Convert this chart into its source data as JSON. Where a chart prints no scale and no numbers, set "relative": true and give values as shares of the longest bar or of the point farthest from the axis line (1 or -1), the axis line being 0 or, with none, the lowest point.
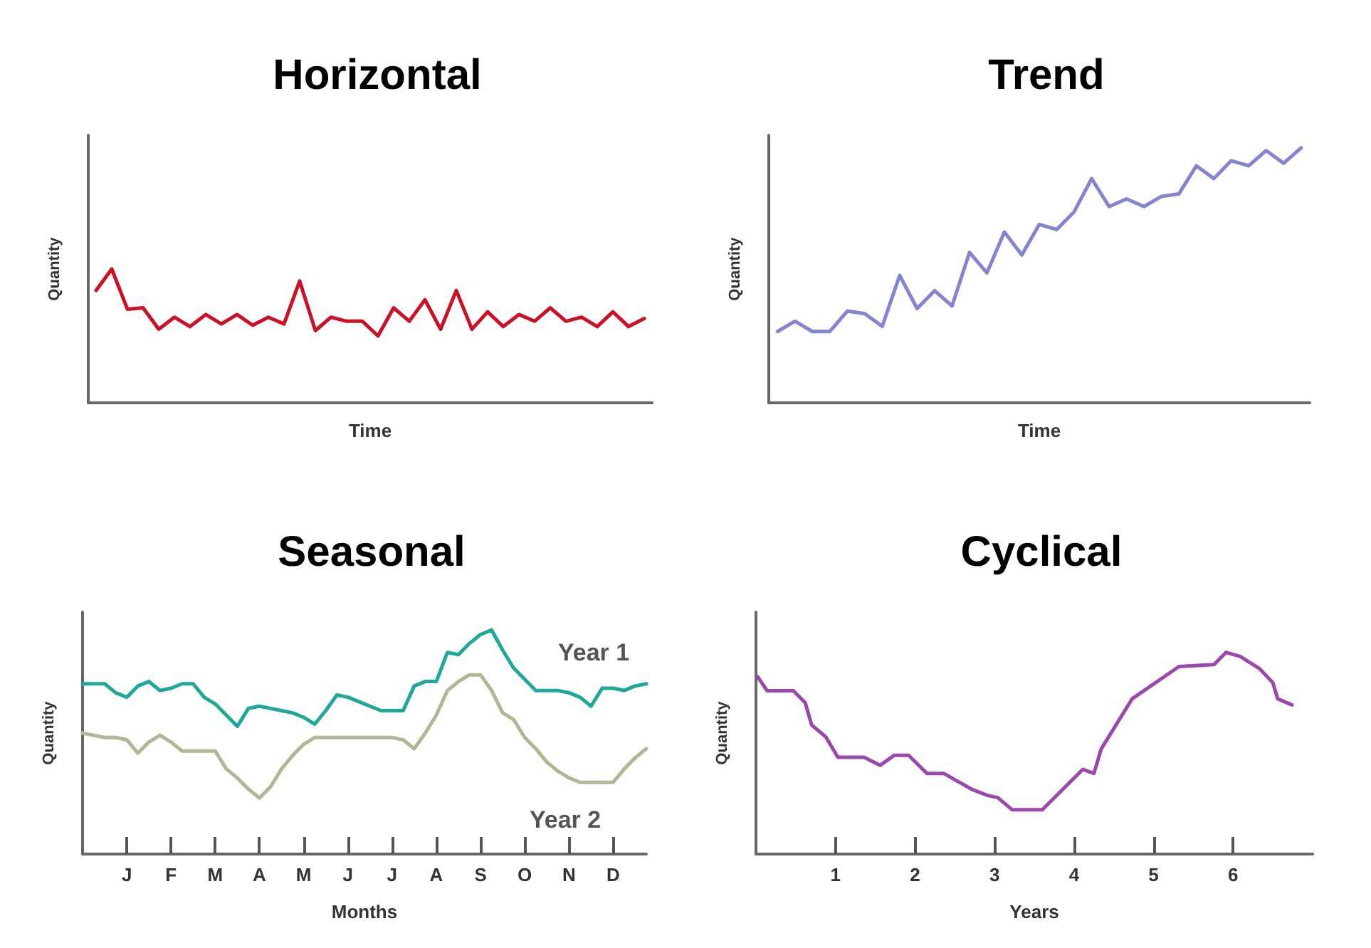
{
  "chart_data": [
    {
      "type": "line",
      "title": "Horizontal",
      "xlabel": "Time",
      "ylabel": "Quantity",
      "relative": true,
      "marker": "none",
      "line_style": "solid",
      "categories": [
        null,
        null,
        null,
        null,
        null,
        null,
        null,
        null,
        null,
        null,
        null,
        null,
        null,
        null,
        null,
        null,
        null,
        null,
        null,
        null,
        null,
        null,
        null,
        null,
        null,
        null,
        null,
        null,
        null,
        null,
        null,
        null,
        null,
        null,
        null,
        null
      ],
      "series": [
        {
          "color": "#cc1126",
          "values": [
            0.84,
            1,
            0.7,
            0.71,
            0.55,
            0.64,
            0.57,
            0.66,
            0.59,
            0.66,
            0.58,
            0.64,
            0.59,
            0.91,
            0.54,
            0.64,
            0.61,
            0.61,
            0.5,
            0.71,
            0.61,
            0.77,
            0.55,
            0.84,
            0.55,
            0.68,
            0.57,
            0.66,
            0.61,
            0.71,
            0.61,
            0.64,
            0.57,
            0.68,
            0.57,
            0.63
          ]
        }
      ]
    },
    {
      "type": "line",
      "title": "Trend",
      "xlabel": "Time",
      "ylabel": "Quantity",
      "relative": true,
      "marker": "none",
      "line_style": "solid",
      "categories": [
        null,
        null,
        null,
        null,
        null,
        null,
        null,
        null,
        null,
        null,
        null,
        null,
        null,
        null,
        null,
        null,
        null,
        null,
        null,
        null,
        null,
        null,
        null,
        null,
        null,
        null,
        null,
        null,
        null,
        null,
        null
      ],
      "series": [
        {
          "color": "#8484d0",
          "values": [
            0.28,
            0.32,
            0.28,
            0.28,
            0.36,
            0.35,
            0.3,
            0.5,
            0.37,
            0.44,
            0.38,
            0.59,
            0.51,
            0.67,
            0.58,
            0.7,
            0.68,
            0.75,
            0.88,
            0.77,
            0.8,
            0.77,
            0.81,
            0.82,
            0.93,
            0.88,
            0.95,
            0.93,
            0.99,
            0.94,
            1
          ]
        }
      ]
    },
    {
      "type": "line",
      "title": "Seasonal",
      "xlabel": "Months",
      "ylabel": "Quantity",
      "relative": true,
      "marker": "none",
      "line_style": "solid",
      "categories": [
        null,
        null,
        null,
        null,
        "J",
        null,
        null,
        null,
        "F",
        null,
        null,
        null,
        "M",
        null,
        null,
        null,
        "A",
        null,
        null,
        null,
        "M",
        null,
        null,
        null,
        "J",
        null,
        null,
        null,
        "J",
        null,
        null,
        null,
        "A",
        null,
        null,
        null,
        "S",
        null,
        null,
        null,
        "O",
        null,
        null,
        null,
        "N",
        null,
        null,
        null,
        "D",
        null,
        null,
        null
      ],
      "series": [
        {
          "name": "Year 1",
          "color": "#1fa897",
          "values": [
            0.76,
            0.76,
            0.76,
            0.72,
            0.7,
            0.75,
            0.77,
            0.73,
            0.74,
            0.76,
            0.76,
            0.7,
            0.67,
            0.62,
            0.57,
            0.65,
            0.66,
            0.65,
            0.64,
            0.63,
            0.61,
            0.58,
            0.64,
            0.71,
            0.7,
            0.68,
            0.66,
            0.64,
            0.64,
            0.64,
            0.75,
            0.77,
            0.77,
            0.9,
            0.89,
            0.94,
            0.98,
            1,
            0.91,
            0.83,
            0.78,
            0.73,
            0.73,
            0.73,
            0.72,
            0.7,
            0.66,
            0.74,
            0.74,
            0.73,
            0.75,
            0.76
          ]
        },
        {
          "name": "Year 2",
          "color": "#b5b596",
          "values": [
            0.54,
            0.53,
            0.52,
            0.52,
            0.51,
            0.45,
            0.5,
            0.53,
            0.5,
            0.46,
            0.46,
            0.46,
            0.46,
            0.38,
            0.34,
            0.29,
            0.25,
            0.3,
            0.38,
            0.44,
            0.49,
            0.52,
            0.52,
            0.52,
            0.52,
            0.52,
            0.52,
            0.52,
            0.52,
            0.51,
            0.47,
            0.54,
            0.62,
            0.73,
            0.77,
            0.8,
            0.8,
            0.73,
            0.63,
            0.6,
            0.52,
            0.47,
            0.41,
            0.37,
            0.34,
            0.32,
            0.32,
            0.32,
            0.32,
            0.38,
            0.43,
            0.47
          ]
        }
      ]
    },
    {
      "type": "line",
      "title": "Cyclical",
      "xlabel": "Years",
      "ylabel": "Quantity",
      "relative": true,
      "marker": "none",
      "line_style": "solid",
      "xlim": [
        0,
        7
      ],
      "xticks": [
        1,
        2,
        3,
        4,
        5,
        6
      ],
      "series": [
        {
          "color": "#9a48ad",
          "x": [
            0.02,
            0.14,
            0.47,
            0.62,
            0.7,
            0.88,
            1.03,
            1.36,
            1.56,
            1.74,
            1.92,
            2.15,
            2.36,
            2.72,
            2.92,
            3.04,
            3.22,
            3.6,
            3.78,
            4.11,
            4.25,
            4.34,
            4.73,
            5.32,
            5.76,
            5.91,
            6.09,
            6.33,
            6.5,
            6.56,
            6.74
          ],
          "values": [
            0.88,
            0.81,
            0.81,
            0.75,
            0.64,
            0.58,
            0.48,
            0.48,
            0.44,
            0.49,
            0.49,
            0.4,
            0.4,
            0.32,
            0.29,
            0.28,
            0.22,
            0.22,
            0.29,
            0.42,
            0.4,
            0.52,
            0.77,
            0.93,
            0.94,
            1,
            0.98,
            0.92,
            0.85,
            0.77,
            0.74
          ]
        }
      ]
    }
  ]
}
